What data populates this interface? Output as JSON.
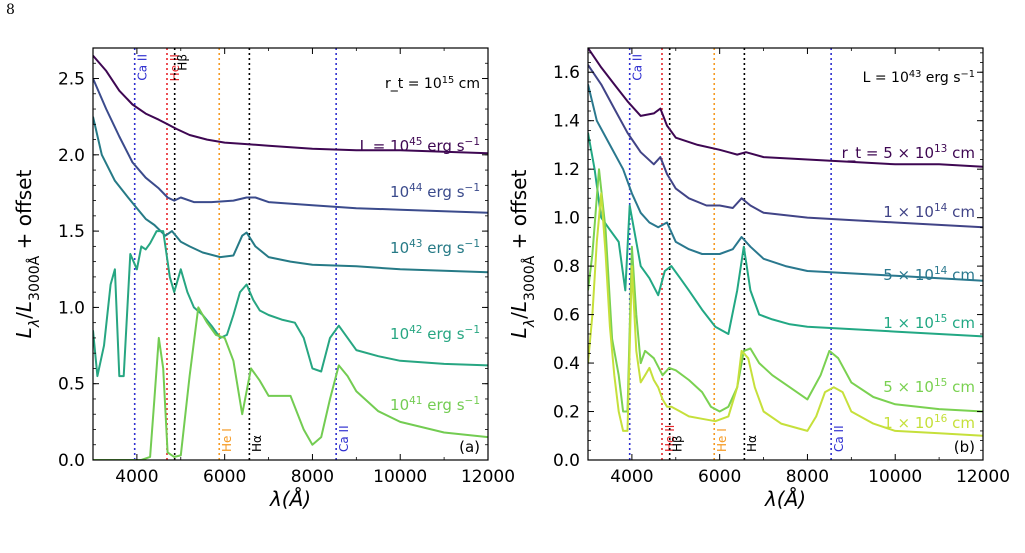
{
  "page_number": "8",
  "colors": {
    "line_names": {
      "CaII": "#2f2fd0",
      "HeII": "#e8262b",
      "Hbeta": "#000000",
      "HeI": "#f59a23",
      "Halpha": "#000000"
    },
    "series_a": [
      "#3e0752",
      "#3b4b8c",
      "#267a86",
      "#27a682",
      "#73cc52"
    ],
    "series_b": [
      "#3e0752",
      "#414487",
      "#2a788e",
      "#22a884",
      "#7ad151",
      "#c6e03b"
    ]
  },
  "chart_data": [
    {
      "type": "line",
      "panel_label": "(a)",
      "xlabel": "λ(Å)",
      "ylabel": "Lλ/L3000Å + offset",
      "xlim": [
        3000,
        12000
      ],
      "ylim": [
        0.0,
        2.7
      ],
      "xticks": [
        4000,
        6000,
        8000,
        10000,
        12000
      ],
      "yticks": [
        0.0,
        0.5,
        1.0,
        1.5,
        2.0,
        2.5
      ],
      "grid": false,
      "annotation": "r_t = 10^15 cm",
      "vertical_lines": [
        {
          "x": 3950,
          "label": "Ca II",
          "color": "#2f2fd0",
          "label_pos": "top"
        },
        {
          "x": 4686,
          "label": "He II",
          "color": "#e8262b",
          "label_pos": "top"
        },
        {
          "x": 4861,
          "label": "Hβ",
          "color": "#000000",
          "label_pos": "top"
        },
        {
          "x": 5876,
          "label": "He I",
          "color": "#f59a23",
          "label_pos": "bottom"
        },
        {
          "x": 6563,
          "label": "Hα",
          "color": "#000000",
          "label_pos": "bottom"
        },
        {
          "x": 8540,
          "label": "Ca II",
          "color": "#2f2fd0",
          "label_pos": "bottom"
        }
      ],
      "series": [
        {
          "name": "L = 10^45 erg s^-1",
          "x": [
            3000,
            3300,
            3600,
            3900,
            4200,
            4500,
            4700,
            4900,
            5200,
            5600,
            6000,
            6500,
            7000,
            8000,
            9000,
            10000,
            11000,
            12000
          ],
          "y": [
            2.65,
            2.55,
            2.42,
            2.33,
            2.27,
            2.23,
            2.2,
            2.17,
            2.13,
            2.1,
            2.08,
            2.07,
            2.06,
            2.04,
            2.03,
            2.03,
            2.02,
            2.01
          ]
        },
        {
          "name": "10^44 erg s^-1",
          "x": [
            3000,
            3300,
            3600,
            3900,
            4200,
            4500,
            4700,
            4850,
            5000,
            5300,
            5700,
            6200,
            6500,
            6700,
            7000,
            8000,
            9000,
            10000,
            11000,
            12000
          ],
          "y": [
            2.5,
            2.3,
            2.12,
            1.95,
            1.85,
            1.78,
            1.72,
            1.7,
            1.72,
            1.69,
            1.69,
            1.7,
            1.72,
            1.72,
            1.69,
            1.67,
            1.65,
            1.64,
            1.63,
            1.62
          ]
        },
        {
          "name": "10^43 erg s^-1",
          "x": [
            3000,
            3200,
            3500,
            3800,
            4000,
            4200,
            4400,
            4650,
            4800,
            5000,
            5200,
            5500,
            5900,
            6200,
            6400,
            6500,
            6700,
            7000,
            7500,
            8000,
            9000,
            10000,
            11000,
            12000
          ],
          "y": [
            2.25,
            2.0,
            1.83,
            1.72,
            1.65,
            1.58,
            1.54,
            1.47,
            1.5,
            1.43,
            1.4,
            1.36,
            1.33,
            1.34,
            1.47,
            1.49,
            1.4,
            1.33,
            1.3,
            1.28,
            1.27,
            1.25,
            1.24,
            1.23
          ]
        },
        {
          "name": "10^42 erg s^-1",
          "x": [
            3000,
            3100,
            3250,
            3400,
            3500,
            3600,
            3700,
            3850,
            4000,
            4100,
            4200,
            4300,
            4450,
            4600,
            4750,
            4850,
            5000,
            5150,
            5300,
            5500,
            5700,
            5900,
            6050,
            6200,
            6350,
            6500,
            6650,
            6800,
            7000,
            7300,
            7600,
            7800,
            8000,
            8200,
            8400,
            8600,
            8800,
            9000,
            9500,
            10000,
            11000,
            12000
          ],
          "y": [
            0.85,
            0.55,
            0.75,
            1.15,
            1.25,
            0.55,
            0.55,
            1.35,
            1.25,
            1.4,
            1.38,
            1.42,
            1.5,
            1.5,
            1.2,
            1.1,
            1.25,
            1.1,
            1.0,
            0.95,
            0.88,
            0.8,
            0.82,
            0.95,
            1.1,
            1.15,
            1.05,
            0.98,
            0.95,
            0.92,
            0.9,
            0.8,
            0.6,
            0.58,
            0.8,
            0.88,
            0.8,
            0.72,
            0.68,
            0.65,
            0.63,
            0.62
          ]
        },
        {
          "name": "10^41 erg s^-1",
          "x": [
            3000,
            3400,
            3700,
            3900,
            4100,
            4300,
            4400,
            4500,
            4600,
            4700,
            4850,
            5000,
            5200,
            5400,
            5600,
            5800,
            6000,
            6200,
            6400,
            6600,
            6800,
            7000,
            7200,
            7500,
            7800,
            8000,
            8200,
            8400,
            8600,
            8800,
            9000,
            9500,
            10000,
            11000,
            12000
          ],
          "y": [
            0.0,
            0.0,
            0.0,
            0.0,
            0.0,
            0.02,
            0.4,
            0.8,
            0.6,
            0.05,
            0.02,
            0.03,
            0.55,
            1.0,
            0.9,
            0.82,
            0.8,
            0.65,
            0.3,
            0.6,
            0.52,
            0.42,
            0.42,
            0.42,
            0.2,
            0.1,
            0.15,
            0.4,
            0.62,
            0.55,
            0.45,
            0.32,
            0.25,
            0.18,
            0.15
          ]
        }
      ]
    },
    {
      "type": "line",
      "panel_label": "(b)",
      "xlabel": "λ(Å)",
      "ylabel": "Lλ/L3000Å + offset",
      "xlim": [
        3000,
        12000
      ],
      "ylim": [
        0.0,
        1.7
      ],
      "xticks": [
        4000,
        6000,
        8000,
        10000,
        12000
      ],
      "yticks": [
        0.0,
        0.2,
        0.4,
        0.6,
        0.8,
        1.0,
        1.2,
        1.4,
        1.6
      ],
      "grid": false,
      "annotation": "L = 10^43 erg s^-1",
      "vertical_lines": [
        {
          "x": 3950,
          "label": "Ca II",
          "color": "#2f2fd0",
          "label_pos": "top"
        },
        {
          "x": 4686,
          "label": "He II",
          "color": "#e8262b",
          "label_pos": "bottom"
        },
        {
          "x": 4861,
          "label": "Hβ",
          "color": "#000000",
          "label_pos": "bottom"
        },
        {
          "x": 5876,
          "label": "He I",
          "color": "#f59a23",
          "label_pos": "bottom"
        },
        {
          "x": 6563,
          "label": "Hα",
          "color": "#000000",
          "label_pos": "bottom"
        },
        {
          "x": 8540,
          "label": "Ca II",
          "color": "#2f2fd0",
          "label_pos": "bottom"
        }
      ],
      "series": [
        {
          "name": "r_t = 5 × 10^13 cm",
          "x": [
            3000,
            3300,
            3600,
            3900,
            4200,
            4500,
            4650,
            4800,
            5000,
            5500,
            6000,
            6200,
            6400,
            6600,
            7000,
            8000,
            9000,
            10000,
            11000,
            12000
          ],
          "y": [
            1.7,
            1.62,
            1.55,
            1.48,
            1.42,
            1.43,
            1.45,
            1.38,
            1.33,
            1.3,
            1.28,
            1.27,
            1.26,
            1.27,
            1.25,
            1.24,
            1.23,
            1.22,
            1.22,
            1.21
          ]
        },
        {
          "name": "1 × 10^14 cm",
          "x": [
            3000,
            3300,
            3600,
            3900,
            4200,
            4500,
            4650,
            4800,
            5000,
            5300,
            5700,
            6000,
            6300,
            6500,
            6700,
            7000,
            8000,
            9000,
            10000,
            11000,
            12000
          ],
          "y": [
            1.63,
            1.55,
            1.45,
            1.35,
            1.27,
            1.22,
            1.25,
            1.18,
            1.12,
            1.08,
            1.05,
            1.05,
            1.04,
            1.08,
            1.05,
            1.02,
            1.0,
            0.99,
            0.98,
            0.97,
            0.96
          ]
        },
        {
          "name": "5 × 10^14 cm",
          "x": [
            3000,
            3200,
            3500,
            3800,
            4000,
            4200,
            4400,
            4600,
            4800,
            5000,
            5300,
            5600,
            6000,
            6300,
            6500,
            6700,
            7000,
            7500,
            8000,
            9000,
            10000,
            11000,
            12000
          ],
          "y": [
            1.55,
            1.4,
            1.3,
            1.2,
            1.1,
            1.02,
            0.98,
            0.96,
            0.98,
            0.9,
            0.87,
            0.85,
            0.85,
            0.87,
            0.92,
            0.88,
            0.83,
            0.8,
            0.78,
            0.77,
            0.76,
            0.75,
            0.74
          ]
        },
        {
          "name": "1 × 10^15 cm",
          "x": [
            3000,
            3150,
            3300,
            3500,
            3700,
            3850,
            3950,
            4050,
            4200,
            4400,
            4600,
            4750,
            4900,
            5100,
            5300,
            5600,
            5900,
            6200,
            6400,
            6550,
            6700,
            6900,
            7200,
            7600,
            8000,
            9000,
            10000,
            11000,
            12000
          ],
          "y": [
            1.35,
            1.2,
            1.0,
            0.95,
            0.9,
            0.7,
            1.05,
            0.95,
            0.8,
            0.75,
            0.68,
            0.78,
            0.8,
            0.75,
            0.7,
            0.62,
            0.55,
            0.52,
            0.7,
            0.88,
            0.7,
            0.6,
            0.58,
            0.56,
            0.55,
            0.54,
            0.53,
            0.52,
            0.51
          ]
        },
        {
          "name": "5 × 10^15 cm",
          "x": [
            3000,
            3100,
            3250,
            3400,
            3550,
            3700,
            3800,
            3900,
            4000,
            4100,
            4200,
            4300,
            4500,
            4700,
            4850,
            5000,
            5300,
            5600,
            5800,
            6000,
            6200,
            6400,
            6550,
            6700,
            6900,
            7200,
            7600,
            8000,
            8300,
            8500,
            8700,
            9000,
            9500,
            10000,
            11000,
            12000
          ],
          "y": [
            0.7,
            0.85,
            1.2,
            0.95,
            0.5,
            0.35,
            0.2,
            0.2,
            0.88,
            0.6,
            0.4,
            0.45,
            0.42,
            0.35,
            0.38,
            0.37,
            0.33,
            0.28,
            0.22,
            0.2,
            0.22,
            0.3,
            0.45,
            0.46,
            0.4,
            0.35,
            0.3,
            0.25,
            0.35,
            0.45,
            0.42,
            0.32,
            0.26,
            0.23,
            0.21,
            0.2
          ]
        },
        {
          "name": "1 × 10^16 cm",
          "x": [
            3000,
            3100,
            3200,
            3300,
            3400,
            3500,
            3600,
            3700,
            3800,
            3900,
            4000,
            4100,
            4200,
            4300,
            4400,
            4500,
            4600,
            4700,
            4800,
            4900,
            5100,
            5300,
            5600,
            5900,
            6200,
            6400,
            6500,
            6650,
            6800,
            7000,
            7400,
            7800,
            8000,
            8200,
            8400,
            8600,
            8800,
            9000,
            9500,
            10000,
            11000,
            12000
          ],
          "y": [
            0.4,
            0.6,
            0.9,
            1.1,
            0.85,
            0.55,
            0.35,
            0.2,
            0.12,
            0.12,
            0.8,
            0.45,
            0.32,
            0.35,
            0.38,
            0.33,
            0.3,
            0.25,
            0.22,
            0.22,
            0.2,
            0.18,
            0.17,
            0.16,
            0.18,
            0.3,
            0.45,
            0.42,
            0.3,
            0.2,
            0.15,
            0.13,
            0.12,
            0.18,
            0.28,
            0.3,
            0.28,
            0.2,
            0.15,
            0.12,
            0.11,
            0.1
          ]
        }
      ]
    }
  ]
}
